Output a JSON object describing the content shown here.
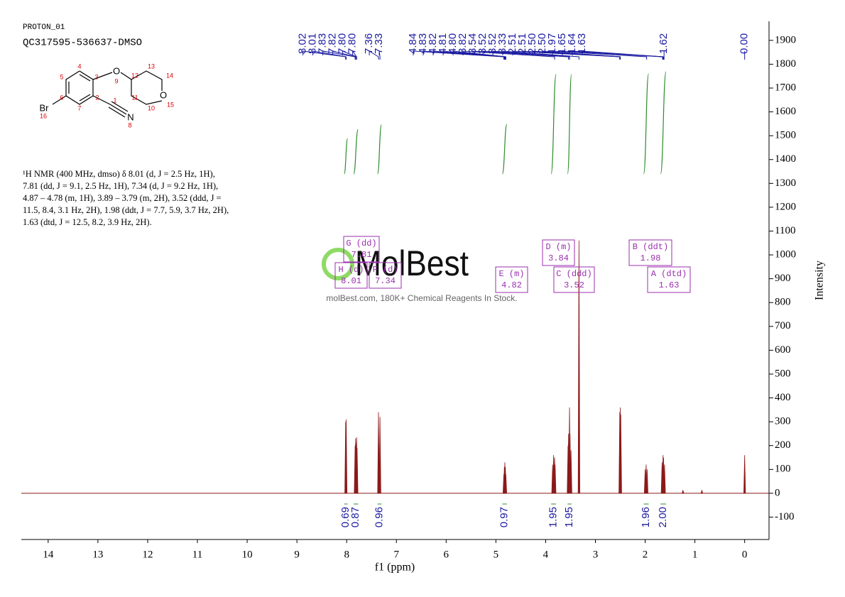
{
  "chart_data": {
    "type": "nmr",
    "title": "PROTON_01",
    "subtitle": "QC317595-536637-DMSO",
    "x_label": "f1 (ppm)",
    "y_label": "Intensity",
    "xlim": [
      14.54,
      -0.49
    ],
    "ylim": [
      -194,
      1980
    ],
    "xticks": [
      14,
      13,
      12,
      11,
      10,
      9,
      8,
      7,
      6,
      5,
      4,
      3,
      2,
      1,
      0
    ],
    "yticks": [
      -100,
      0,
      100,
      200,
      300,
      400,
      500,
      600,
      700,
      800,
      900,
      1000,
      1100,
      1200,
      1300,
      1400,
      1500,
      1600,
      1700,
      1800,
      1900
    ],
    "color": "#8b1a1a",
    "x": [
      8.02,
      8.01,
      7.83,
      7.82,
      7.81,
      7.8,
      7.79,
      7.36,
      7.33,
      4.84,
      4.83,
      4.82,
      4.81,
      4.8,
      3.86,
      3.84,
      3.82,
      3.81,
      3.55,
      3.54,
      3.52,
      3.51,
      3.49,
      3.33,
      2.51,
      2.5,
      2.49,
      2.0,
      1.98,
      1.96,
      1.66,
      1.64,
      1.63,
      1.61,
      1.24,
      0.86,
      0.0
    ],
    "values": [
      300,
      310,
      200,
      230,
      210,
      235,
      190,
      340,
      320,
      80,
      110,
      130,
      110,
      80,
      120,
      160,
      150,
      120,
      200,
      250,
      360,
      250,
      180,
      1060,
      340,
      360,
      330,
      100,
      120,
      100,
      130,
      160,
      150,
      120,
      12,
      12,
      160
    ],
    "peak_picks": [
      {
        "value": 8.02,
        "label": "8.02"
      },
      {
        "value": 8.01,
        "label": "8.01"
      },
      {
        "value": 7.83,
        "label": "7.83"
      },
      {
        "value": 7.82,
        "label": "7.82"
      },
      {
        "value": 7.8,
        "label": "7.80"
      },
      {
        "value": 7.8,
        "label": "7.80"
      },
      {
        "value": 7.36,
        "label": "7.36"
      },
      {
        "value": 7.33,
        "label": "7.33"
      },
      {
        "value": 4.84,
        "label": "4.84"
      },
      {
        "value": 4.83,
        "label": "4.83"
      },
      {
        "value": 4.82,
        "label": "4.82"
      },
      {
        "value": 4.81,
        "label": "4.81"
      },
      {
        "value": 4.8,
        "label": "4.80"
      },
      {
        "value": 3.82,
        "label": "3.82"
      },
      {
        "value": 3.54,
        "label": "3.54"
      },
      {
        "value": 3.52,
        "label": "3.52"
      },
      {
        "value": 3.52,
        "label": "3.52"
      },
      {
        "value": 3.33,
        "label": "3.33"
      },
      {
        "value": 2.51,
        "label": "2.51"
      },
      {
        "value": 2.51,
        "label": "2.51"
      },
      {
        "value": 2.5,
        "label": "2.50"
      },
      {
        "value": 2.5,
        "label": "2.50"
      },
      {
        "value": 1.97,
        "label": "1.97"
      },
      {
        "value": 1.65,
        "label": "1.65"
      },
      {
        "value": 1.64,
        "label": "1.64"
      },
      {
        "value": 1.63,
        "label": "1.63"
      },
      {
        "value": 1.62,
        "label": "1.62"
      },
      {
        "value": 0.0,
        "label": "0.00"
      }
    ],
    "integrals": [
      {
        "from": 8.05,
        "to": 7.98,
        "value": {
          "value": 0.69,
          "label": "0.69"
        }
      },
      {
        "from": 7.86,
        "to": 7.77,
        "value": {
          "value": 0.87,
          "label": "0.87"
        }
      },
      {
        "from": 7.38,
        "to": 7.3,
        "value": {
          "value": 0.96,
          "label": "0.96"
        }
      },
      {
        "from": 4.87,
        "to": 4.78,
        "value": {
          "value": 0.97,
          "label": "0.97"
        }
      },
      {
        "from": 3.89,
        "to": 3.79,
        "value": {
          "value": 1.95,
          "label": "1.95"
        }
      },
      {
        "from": 3.56,
        "to": 3.48,
        "value": {
          "value": 1.95,
          "label": "1.95"
        }
      },
      {
        "from": 2.03,
        "to": 1.93,
        "value": {
          "value": 1.96,
          "label": "1.96"
        }
      },
      {
        "from": 1.69,
        "to": 1.58,
        "value": {
          "value": 2.0,
          "label": "2.00"
        }
      }
    ],
    "multiplets": [
      {
        "name": "H (d)",
        "shift": "8.01"
      },
      {
        "name": "F (d)",
        "shift": "7.34"
      },
      {
        "name": "G (dd)",
        "shift": "7.81"
      },
      {
        "name": "E (m)",
        "shift": "4.82"
      },
      {
        "name": "D (m)",
        "shift": "3.84"
      },
      {
        "name": "C (ddd)",
        "shift": "3.52"
      },
      {
        "name": "B (ddt)",
        "shift": "1.98"
      },
      {
        "name": "A (dtd)",
        "shift": "1.63"
      }
    ],
    "description": [
      "¹H NMR (400 MHz, dmso) δ 8.01 (d, J = 2.5 Hz, 1H),",
      "7.81 (dd, J = 9.1, 2.5 Hz, 1H), 7.34 (d, J = 9.2 Hz, 1H),",
      "4.87 – 4.78 (m, 1H), 3.89 – 3.79 (m, 2H), 3.52 (ddd, J =",
      "11.5, 8.4, 3.1 Hz, 2H), 1.98 (ddt, J = 7.7, 5.9, 3.7 Hz, 2H),",
      "1.63 (dtd, J = 12.5, 8.2, 3.9 Hz, 2H)."
    ],
    "structure": {
      "labels": [
        "4",
        "5",
        "3",
        "6",
        "2",
        "7",
        "1",
        "8",
        "9",
        "12",
        "13",
        "11",
        "14",
        "10",
        "15",
        "16",
        "O",
        "O",
        "Br",
        "N"
      ]
    },
    "watermark": {
      "logo": "MolBest",
      "text": "molBest.com, 180K+ Chemical Reagents In Stock."
    }
  }
}
